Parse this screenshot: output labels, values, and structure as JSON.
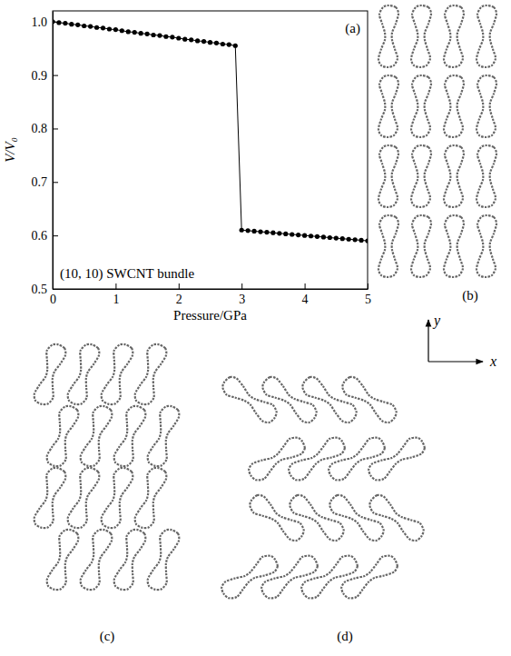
{
  "chart_data": {
    "type": "line",
    "marker": "circle",
    "color": "#000000",
    "xlabel": "Pressure/GPa",
    "ylabel": "V/V₀",
    "annotations": [
      "(a)",
      "(10, 10) SWCNT bundle"
    ],
    "x": [
      0,
      0.1,
      0.2,
      0.3,
      0.4,
      0.5,
      0.6,
      0.7,
      0.8,
      0.9,
      1.0,
      1.1,
      1.2,
      1.3,
      1.4,
      1.5,
      1.6,
      1.7,
      1.8,
      1.9,
      2.0,
      2.1,
      2.2,
      2.3,
      2.4,
      2.5,
      2.6,
      2.7,
      2.8,
      2.9,
      3.0,
      3.1,
      3.2,
      3.3,
      3.4,
      3.5,
      3.6,
      3.7,
      3.8,
      3.9,
      4.0,
      4.1,
      4.2,
      4.3,
      4.4,
      4.5,
      4.6,
      4.7,
      4.8,
      4.9,
      5.0
    ],
    "values": [
      1.0,
      0.998,
      0.997,
      0.995,
      0.994,
      0.992,
      0.991,
      0.989,
      0.988,
      0.986,
      0.985,
      0.983,
      0.981,
      0.98,
      0.978,
      0.977,
      0.975,
      0.974,
      0.972,
      0.971,
      0.969,
      0.967,
      0.966,
      0.964,
      0.963,
      0.961,
      0.96,
      0.958,
      0.957,
      0.955,
      0.61,
      0.609,
      0.608,
      0.607,
      0.606,
      0.605,
      0.604,
      0.603,
      0.602,
      0.601,
      0.6,
      0.599,
      0.598,
      0.597,
      0.596,
      0.595,
      0.594,
      0.593,
      0.592,
      0.591,
      0.59
    ],
    "xlim": [
      0,
      5
    ],
    "xticks": [
      0,
      1,
      2,
      3,
      4,
      5
    ],
    "ylim": [
      0.5,
      1.02
    ],
    "yticks": [
      0.5,
      0.6,
      0.7,
      0.8,
      0.9,
      {
        "value": 1,
        "label": "1.0"
      }
    ]
  },
  "diagrams": [
    {
      "label": "(b)"
    },
    {
      "label": "(c)"
    },
    {
      "label": "(d)"
    }
  ],
  "axis_key": {
    "x": "x",
    "y": "y"
  }
}
